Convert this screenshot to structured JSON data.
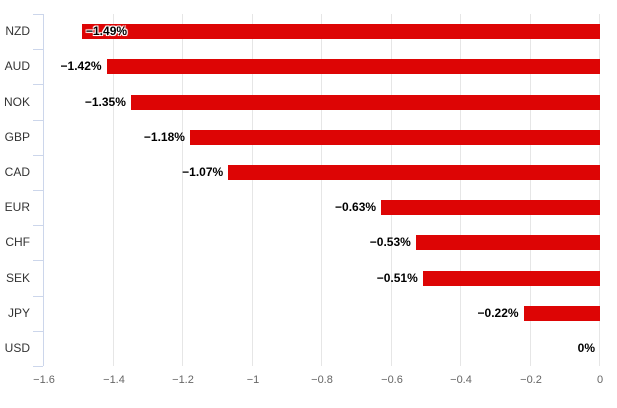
{
  "chart_data": {
    "type": "bar",
    "orientation": "horizontal",
    "title": "",
    "xlabel": "",
    "ylabel": "",
    "legend": false,
    "grid": true,
    "categories": [
      "NZD",
      "AUD",
      "NOK",
      "GBP",
      "CAD",
      "EUR",
      "CHF",
      "SEK",
      "JPY",
      "USD"
    ],
    "values": [
      -1.49,
      -1.42,
      -1.35,
      -1.18,
      -1.07,
      -0.63,
      -0.53,
      -0.51,
      -0.22,
      0
    ],
    "data_labels": [
      "−1.49%",
      "−1.42%",
      "−1.35%",
      "−1.18%",
      "−1.07%",
      "−0.63%",
      "−0.53%",
      "−0.51%",
      "−0.22%",
      "0%"
    ],
    "xlim": [
      -1.6,
      0
    ],
    "x_ticks": [
      -1.6,
      -1.4,
      -1.2,
      -1,
      -0.8,
      -0.6,
      -0.4,
      -0.2,
      0
    ],
    "x_tick_labels": [
      "−1.6",
      "−1.4",
      "−1.2",
      "−1",
      "−0.8",
      "−0.6",
      "−0.4",
      "−0.2",
      "0"
    ],
    "colors": {
      "bar": "#dd0505",
      "grid": "#e6e6e6",
      "axis_line": "#ccd6eb",
      "category_label": "#333333",
      "tick_label": "#666666",
      "data_label": "#000000",
      "background": "#ffffff"
    }
  }
}
